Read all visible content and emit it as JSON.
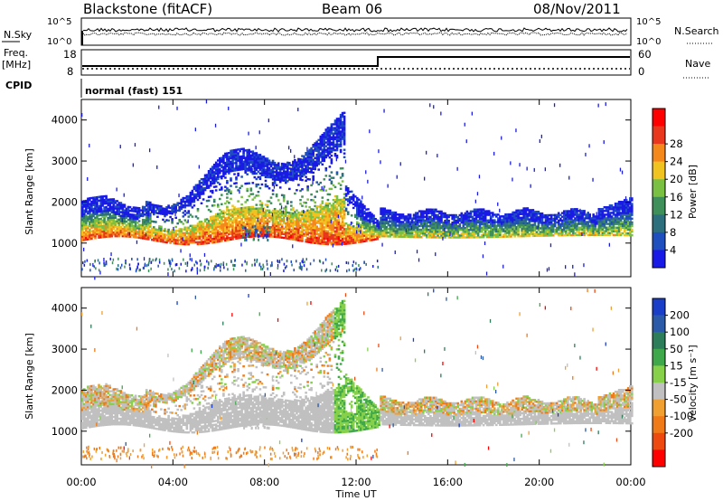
{
  "header": {
    "station": "Blackstone (fitACF)",
    "beam": "Beam 06",
    "date": "08/Nov/2011"
  },
  "top_panels": {
    "nsky_label": "N.Sky",
    "nsearch_label": "N.Search",
    "nsky_ticks": [
      "10^5",
      "10^0"
    ],
    "nsearch_ticks": [
      "10^5",
      "10^0"
    ],
    "freq_label": "Freq.",
    "freq_unit": "[MHz]",
    "freq_ticks": [
      "18",
      "8"
    ],
    "nave_label": "Nave",
    "nave_ticks": [
      "60",
      "0"
    ],
    "cpid_label": "CPID",
    "cpid_value": "normal (fast) 151"
  },
  "chart_data": [
    {
      "type": "heatmap",
      "name": "power",
      "ylabel": "Slant Range [km]",
      "xlabel": "Time UT",
      "xlim": [
        0,
        24
      ],
      "ylim": [
        180,
        4500
      ],
      "y_ticks": [
        "1000",
        "2000",
        "3000",
        "4000"
      ],
      "x_ticks": [
        "00:00",
        "04:00",
        "08:00",
        "12:00",
        "16:00",
        "20:00",
        "00:00"
      ],
      "colorbar": {
        "label": "Power [dB]",
        "ticks": [
          "4",
          "8",
          "12",
          "16",
          "20",
          "24",
          "28"
        ],
        "colors": [
          "#1a1ae6",
          "#1f4fbe",
          "#2e6f7e",
          "#3e8f5a",
          "#7ac043",
          "#f0c320",
          "#f5881a",
          "#e8371c",
          "#ff0000"
        ]
      },
      "features": [
        {
          "feature": "near-range band",
          "t_start": 0,
          "t_end": 13,
          "range_km": [
            1000,
            2000
          ],
          "peak_db": 28
        },
        {
          "feature": "far-range arc",
          "t_start": 2.5,
          "t_end": 12.5,
          "range_km": [
            2000,
            4000
          ],
          "peak_db": 8
        },
        {
          "feature": "post-12UT layer",
          "t_start": 13,
          "t_end": 24,
          "range_km": [
            1100,
            2000
          ],
          "peak_db": 20
        }
      ]
    },
    {
      "type": "heatmap",
      "name": "velocity",
      "ylabel": "Slant Range [km]",
      "xlabel": "Time UT",
      "xlim": [
        0,
        24
      ],
      "ylim": [
        180,
        4500
      ],
      "y_ticks": [
        "1000",
        "2000",
        "3000",
        "4000"
      ],
      "x_ticks": [
        "00:00",
        "04:00",
        "08:00",
        "12:00",
        "16:00",
        "20:00",
        "00:00"
      ],
      "colorbar": {
        "label": "Velocity [m s⁻¹]",
        "ticks": [
          "200",
          "100",
          "50",
          "15",
          "-15",
          "-50",
          "-100",
          "-200"
        ],
        "colors": [
          "#1a3ec8",
          "#2a5aa8",
          "#2e7d5a",
          "#3fa84a",
          "#86d04a",
          "#c0c0c0",
          "#f0a030",
          "#f07a18",
          "#ee4a10",
          "#ff0000"
        ]
      },
      "features": [
        {
          "feature": "ground scatter band",
          "t_start": 0,
          "t_end": 24,
          "range_km": [
            1100,
            2000
          ],
          "velocity_ms": 0
        },
        {
          "feature": "steep decline",
          "t_start": 11,
          "t_end": 13,
          "range_km": [
            800,
            2000
          ],
          "velocity_ms": 50
        },
        {
          "feature": "far-range arc",
          "t_start": 2.5,
          "t_end": 12.5,
          "range_km": [
            2000,
            4000
          ],
          "velocity_ms": -15
        }
      ]
    }
  ]
}
